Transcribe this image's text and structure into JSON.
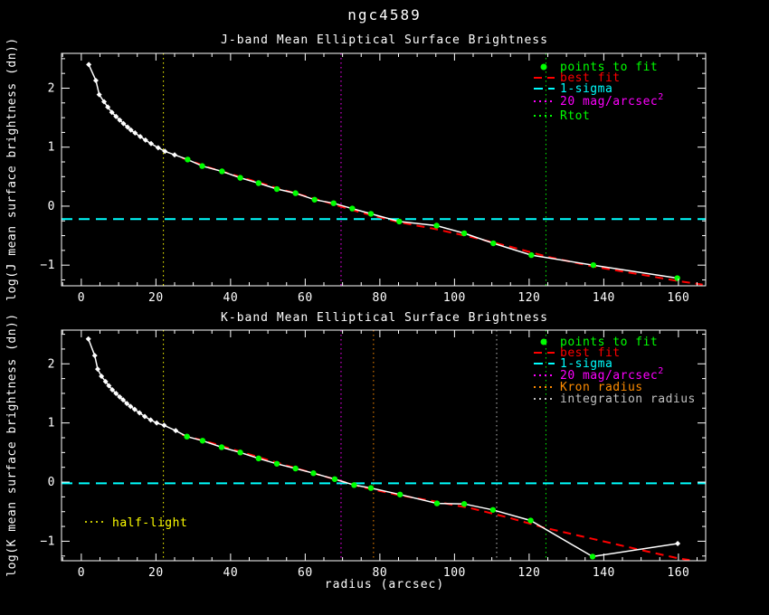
{
  "page_title": "ngc4589",
  "colors": {
    "background": "#000000",
    "axis": "#ffffff",
    "profile": "#ffffff",
    "points_to_fit": "#00ff00",
    "best_fit": "#ff0000",
    "one_sigma": "#00ffff",
    "mag20": "#ff00ff",
    "rtot": "#00ff00",
    "kron": "#ff8c00",
    "integration": "#c0c0c0",
    "half_light": "#ffff00"
  },
  "chart_data": [
    {
      "type": "line",
      "title": "J-band Mean Elliptical Surface Brightness",
      "ylabel": "log(J mean surface brightness (dn))",
      "xlabel": "",
      "xlim": [
        -5.3,
        167.3
      ],
      "ylim": [
        -1.35,
        2.59
      ],
      "xticks": [
        0,
        20,
        40,
        60,
        80,
        100,
        120,
        140,
        160
      ],
      "yticks": [
        -1,
        0,
        1,
        2
      ],
      "x_minor_step": 5,
      "y_minor_step": 0.25,
      "grid": false,
      "legend_position": "upper right",
      "series": {
        "profile": {
          "name": "mean surface brightness profile",
          "color": "#ffffff",
          "points": [
            [
              2.0,
              2.4
            ],
            [
              3.9,
              2.13
            ],
            [
              4.8,
              1.89
            ],
            [
              6.1,
              1.77
            ],
            [
              7.1,
              1.68
            ],
            [
              8.2,
              1.59
            ],
            [
              9.3,
              1.52
            ],
            [
              10.3,
              1.46
            ],
            [
              11.3,
              1.4
            ],
            [
              12.4,
              1.34
            ],
            [
              13.3,
              1.29
            ],
            [
              14.4,
              1.24
            ],
            [
              15.8,
              1.18
            ],
            [
              17.2,
              1.12
            ],
            [
              18.7,
              1.06
            ],
            [
              20.6,
              0.99
            ],
            [
              22.4,
              0.93
            ],
            [
              25.0,
              0.87
            ]
          ]
        },
        "points_to_fit": {
          "name": "points to fit",
          "color": "#00ff00",
          "points": [
            [
              28.5,
              0.79
            ],
            [
              32.4,
              0.68
            ],
            [
              37.7,
              0.59
            ],
            [
              42.6,
              0.48
            ],
            [
              47.5,
              0.39
            ],
            [
              52.4,
              0.29
            ],
            [
              57.4,
              0.22
            ],
            [
              62.5,
              0.11
            ],
            [
              67.6,
              0.05
            ],
            [
              72.6,
              -0.04
            ],
            [
              77.6,
              -0.13
            ],
            [
              85.2,
              -0.26
            ],
            [
              95.2,
              -0.33
            ],
            [
              102.6,
              -0.46
            ],
            [
              110.4,
              -0.63
            ],
            [
              120.6,
              -0.83
            ],
            [
              137.2,
              -1.0
            ],
            [
              159.7,
              -1.22
            ]
          ]
        },
        "best_fit": {
          "name": "best fit",
          "color": "#ff0000",
          "points": [
            [
              27,
              0.82
            ],
            [
              35,
              0.64
            ],
            [
              45,
              0.45
            ],
            [
              55,
              0.26
            ],
            [
              65,
              0.08
            ],
            [
              75,
              -0.11
            ],
            [
              85,
              -0.27
            ],
            [
              95,
              -0.39
            ],
            [
              105,
              -0.53
            ],
            [
              115,
              -0.69
            ],
            [
              125,
              -0.86
            ],
            [
              137,
              -1.02
            ],
            [
              150,
              -1.16
            ],
            [
              160,
              -1.27
            ],
            [
              166.5,
              -1.33
            ]
          ]
        }
      },
      "ref_lines": [
        {
          "name": "half-light-radius",
          "axis": "x",
          "value": 22.0,
          "color": "#ffff00",
          "dash": "1.5,3.5",
          "width": 1
        },
        {
          "name": "20-mag-arcsec2-radius",
          "axis": "x",
          "value": 69.6,
          "color": "#ff00ff",
          "dash": "1.5,3.5",
          "width": 1
        },
        {
          "name": "rtot-radius",
          "axis": "x",
          "value": 124.5,
          "color": "#00ff00",
          "dash": "1.5,3.5",
          "width": 1
        },
        {
          "name": "1-sigma-level",
          "axis": "y",
          "value": -0.22,
          "color": "#00ffff",
          "dash": "12,7",
          "width": 2
        }
      ],
      "legend": [
        {
          "label": "points to fit",
          "color": "#00ff00",
          "marker": "dot"
        },
        {
          "label": "best fit",
          "color": "#ff0000",
          "marker": "line",
          "dash": "9,6"
        },
        {
          "label": "1-sigma",
          "color": "#00ffff",
          "marker": "line",
          "dash": "10,6"
        },
        {
          "label": "20 mag/arcsec",
          "sup": "2",
          "color": "#ff00ff",
          "marker": "line",
          "dash": "2,4"
        },
        {
          "label": "Rtot",
          "color": "#00ff00",
          "marker": "line",
          "dash": "2,4"
        }
      ]
    },
    {
      "type": "line",
      "title": "K-band Mean Elliptical Surface Brightness",
      "ylabel": "log(K mean surface brightness (dn))",
      "xlabel": "radius (arcsec)",
      "xlim": [
        -5.3,
        167.3
      ],
      "ylim": [
        -1.33,
        2.57
      ],
      "xticks": [
        0,
        20,
        40,
        60,
        80,
        100,
        120,
        140,
        160
      ],
      "yticks": [
        -1,
        0,
        1,
        2
      ],
      "x_minor_step": 5,
      "y_minor_step": 0.25,
      "grid": false,
      "legend_position": "upper right",
      "series": {
        "profile": {
          "name": "mean surface brightness profile",
          "color": "#ffffff",
          "points": [
            [
              1.9,
              2.42
            ],
            [
              3.6,
              2.14
            ],
            [
              4.4,
              1.91
            ],
            [
              5.4,
              1.79
            ],
            [
              6.5,
              1.7
            ],
            [
              7.4,
              1.63
            ],
            [
              8.3,
              1.56
            ],
            [
              9.3,
              1.5
            ],
            [
              10.3,
              1.44
            ],
            [
              11.2,
              1.39
            ],
            [
              12.2,
              1.33
            ],
            [
              13.2,
              1.28
            ],
            [
              14.3,
              1.23
            ],
            [
              15.6,
              1.17
            ],
            [
              17.0,
              1.11
            ],
            [
              18.6,
              1.05
            ],
            [
              20.2,
              1.0
            ],
            [
              22.2,
              0.96
            ],
            [
              25.3,
              0.87
            ]
          ]
        },
        "points_to_fit": {
          "name": "points to fit",
          "color": "#00ff00",
          "points": [
            [
              28.3,
              0.77
            ],
            [
              32.5,
              0.7
            ],
            [
              37.6,
              0.59
            ],
            [
              42.6,
              0.5
            ],
            [
              47.5,
              0.4
            ],
            [
              52.4,
              0.31
            ],
            [
              57.4,
              0.23
            ],
            [
              62.2,
              0.15
            ],
            [
              67.9,
              0.05
            ],
            [
              73.1,
              -0.05
            ],
            [
              77.6,
              -0.1
            ],
            [
              85.4,
              -0.21
            ],
            [
              95.3,
              -0.36
            ],
            [
              102.6,
              -0.37
            ],
            [
              110.3,
              -0.47
            ],
            [
              120.4,
              -0.65
            ],
            [
              137.0,
              -1.26
            ]
          ]
        },
        "profile_outer": {
          "name": "outer profile point",
          "color": "#ffffff",
          "points": [
            [
              159.8,
              -1.04
            ]
          ]
        },
        "best_fit": {
          "name": "best fit",
          "color": "#ff0000",
          "points": [
            [
              27,
              0.8
            ],
            [
              35,
              0.66
            ],
            [
              45,
              0.47
            ],
            [
              55,
              0.28
            ],
            [
              65,
              0.1
            ],
            [
              75,
              -0.08
            ],
            [
              85,
              -0.22
            ],
            [
              95,
              -0.33
            ],
            [
              105,
              -0.45
            ],
            [
              115,
              -0.61
            ],
            [
              124,
              -0.77
            ],
            [
              137,
              -0.96
            ],
            [
              150,
              -1.15
            ],
            [
              160,
              -1.29
            ],
            [
              163,
              -1.32
            ]
          ]
        }
      },
      "ref_lines": [
        {
          "name": "half-light-radius",
          "axis": "x",
          "value": 22.0,
          "color": "#ffff00",
          "dash": "1.5,3.5",
          "width": 1
        },
        {
          "name": "20-mag-arcsec2-radius",
          "axis": "x",
          "value": 69.6,
          "color": "#ff00ff",
          "dash": "1.5,3.5",
          "width": 1
        },
        {
          "name": "kron-radius",
          "axis": "x",
          "value": 78.3,
          "color": "#ff8c00",
          "dash": "1.5,3.5",
          "width": 1
        },
        {
          "name": "integration-radius",
          "axis": "x",
          "value": 111.3,
          "color": "#c0c0c0",
          "dash": "1.5,3.5",
          "width": 1
        },
        {
          "name": "rtot-radius",
          "axis": "x",
          "value": 124.5,
          "color": "#00ff00",
          "dash": "1.5,3.5",
          "width": 1
        },
        {
          "name": "1-sigma-level",
          "axis": "y",
          "value": -0.02,
          "color": "#00ffff",
          "dash": "12,7",
          "width": 2
        }
      ],
      "legend": [
        {
          "label": "points to fit",
          "color": "#00ff00",
          "marker": "dot"
        },
        {
          "label": "best fit",
          "color": "#ff0000",
          "marker": "line",
          "dash": "9,6"
        },
        {
          "label": "1-sigma",
          "color": "#00ffff",
          "marker": "line",
          "dash": "10,6"
        },
        {
          "label": "20 mag/arcsec",
          "sup": "2",
          "color": "#ff00ff",
          "marker": "line",
          "dash": "2,4"
        },
        {
          "label": "Kron radius",
          "color": "#ff8c00",
          "marker": "line",
          "dash": "2,4"
        },
        {
          "label": "integration radius",
          "color": "#c0c0c0",
          "marker": "line",
          "dash": "2,4"
        }
      ],
      "inset_legend": {
        "label": "half-light",
        "color": "#ffff00",
        "dash": "2,4"
      }
    }
  ]
}
